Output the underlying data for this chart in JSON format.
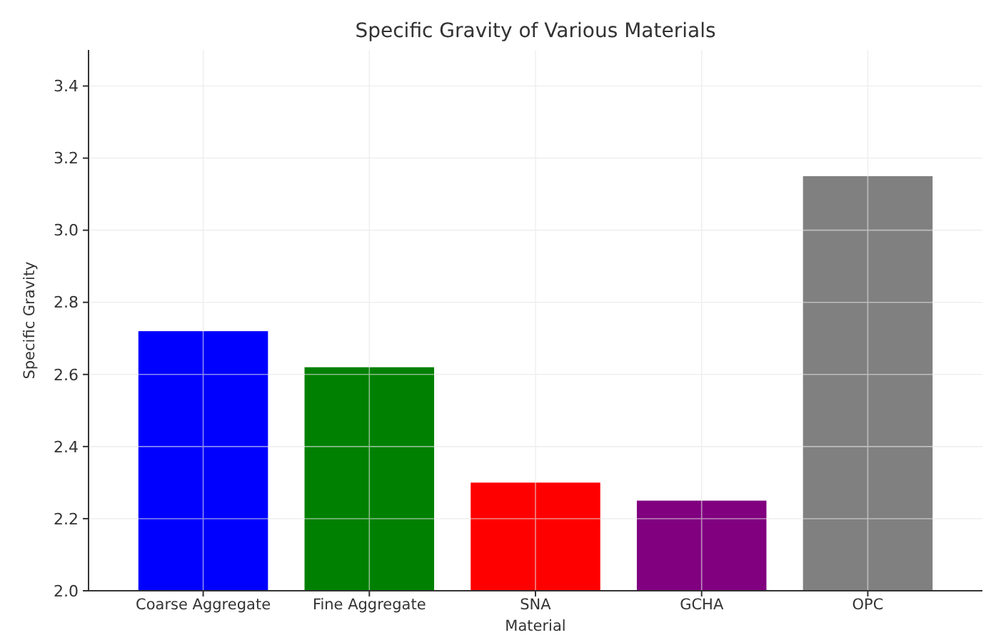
{
  "chart_data": {
    "type": "bar",
    "title": "Specific Gravity of Various Materials",
    "xlabel": "Material",
    "ylabel": "Specific Gravity",
    "categories": [
      "Coarse Aggregate",
      "Fine Aggregate",
      "SNA",
      "GCHA",
      "OPC"
    ],
    "values": [
      2.72,
      2.62,
      2.3,
      2.25,
      3.15
    ],
    "colors": [
      "#0000ff",
      "#008000",
      "#ff0000",
      "#800080",
      "#808080"
    ],
    "ylim": [
      2.0,
      3.5
    ],
    "yticks": [
      {
        "value": 2.0,
        "label": "2.0"
      },
      {
        "value": 2.2,
        "label": "2.2"
      },
      {
        "value": 2.4,
        "label": "2.4"
      },
      {
        "value": 2.6,
        "label": "2.6"
      },
      {
        "value": 2.8,
        "label": "2.8"
      },
      {
        "value": 3.0,
        "label": "3.0"
      },
      {
        "value": 3.2,
        "label": "3.2"
      },
      {
        "value": 3.4,
        "label": "3.4"
      }
    ],
    "grid": true
  }
}
